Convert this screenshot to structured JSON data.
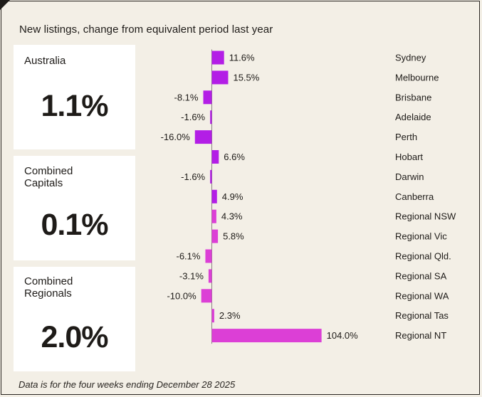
{
  "header": {
    "title": "New listings, change from equivalent period last year"
  },
  "cards": [
    {
      "label": "Australia",
      "value": "1.1%"
    },
    {
      "label": "Combined\nCapitals",
      "value": "0.1%"
    },
    {
      "label": "Combined\nRegionals",
      "value": "2.0%"
    }
  ],
  "footnote": "Data is for the four weeks ending December 28 2025",
  "colors": {
    "capital_bar": "#b31ee6",
    "regional_bar": "#dc3fd6",
    "background": "#f3efe6"
  },
  "chart_data": {
    "type": "bar",
    "orientation": "horizontal",
    "title": "New listings, change from equivalent period last year",
    "unit": "%",
    "categories": [
      "Sydney",
      "Melbourne",
      "Brisbane",
      "Adelaide",
      "Perth",
      "Hobart",
      "Darwin",
      "Canberra",
      "Regional NSW",
      "Regional Vic",
      "Regional Qld.",
      "Regional SA",
      "Regional WA",
      "Regional Tas",
      "Regional NT"
    ],
    "values": [
      11.6,
      15.5,
      -8.1,
      -1.6,
      -16.0,
      6.6,
      -1.6,
      4.9,
      4.3,
      5.8,
      -6.1,
      -3.1,
      -10.0,
      2.3,
      104.0
    ],
    "value_labels": [
      "11.6%",
      "15.5%",
      "-8.1%",
      "-1.6%",
      "-16.0%",
      "6.6%",
      "-1.6%",
      "4.9%",
      "4.3%",
      "5.8%",
      "-6.1%",
      "-3.1%",
      "-10.0%",
      "2.3%",
      "104.0%"
    ],
    "groups": [
      "capital",
      "capital",
      "capital",
      "capital",
      "capital",
      "capital",
      "capital",
      "capital",
      "regional",
      "regional",
      "regional",
      "regional",
      "regional",
      "regional",
      "regional"
    ]
  }
}
